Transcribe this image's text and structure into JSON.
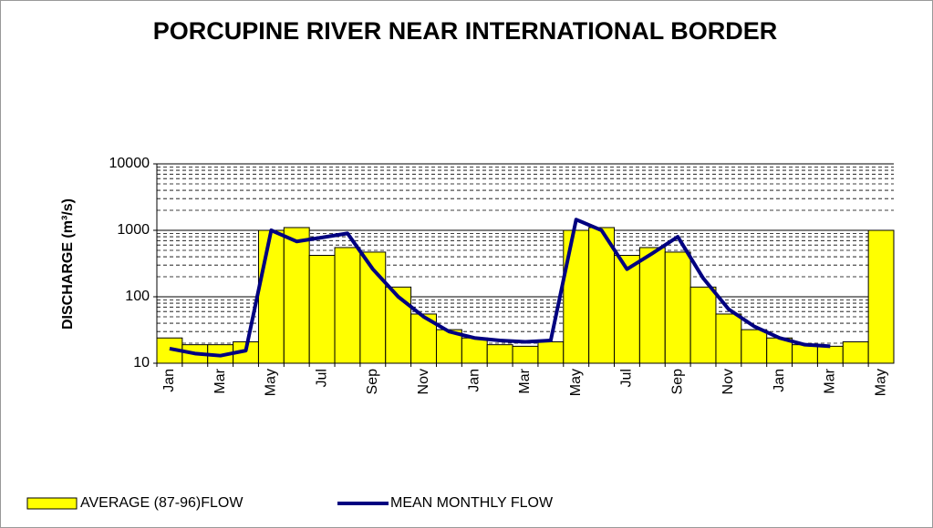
{
  "chart_data": {
    "type": "bar_line",
    "title": "PORCUPINE RIVER NEAR INTERNATIONAL BORDER",
    "ylabel": "DISCHARGE (m³/s)",
    "categories": [
      "Jan",
      null,
      "Mar",
      null,
      "May",
      null,
      "Jul",
      null,
      "Sep",
      null,
      "Nov",
      null,
      "Jan",
      null,
      "Mar",
      null,
      "May",
      null,
      "Jul",
      null,
      "Sep",
      null,
      "Nov",
      null,
      "Jan",
      null,
      "Mar",
      null,
      "May"
    ],
    "series": [
      {
        "name": "AVERAGE (87-96)FLOW",
        "color": "#ffff00",
        "kind": "bar",
        "values": [
          24,
          19,
          19,
          21,
          1000,
          1100,
          420,
          550,
          470,
          140,
          55,
          32,
          24,
          19,
          18,
          21,
          1000,
          1100,
          420,
          550,
          470,
          140,
          55,
          32,
          24,
          19,
          18,
          21,
          1000
        ]
      },
      {
        "name": "MEAN MONTHLY FLOW",
        "color": "#000080",
        "kind": "line",
        "values": [
          16.6,
          14,
          13,
          15.5,
          1000,
          680,
          780,
          900,
          260,
          100,
          50,
          30,
          24,
          22,
          21,
          22,
          1450,
          1000,
          260,
          450,
          800,
          190,
          65,
          36,
          24,
          19,
          18,
          null,
          null
        ]
      }
    ],
    "ylim": [
      10,
      10000
    ],
    "yticks": [
      10,
      100,
      1000,
      10000
    ],
    "log_y": true,
    "grid": true,
    "minor_grid": true,
    "legend": "bottom"
  }
}
